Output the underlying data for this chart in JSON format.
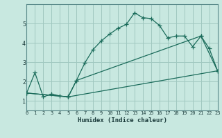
{
  "title": "",
  "xlabel": "Humidex (Indice chaleur)",
  "bg_color": "#c8e8e0",
  "grid_color": "#a0c8c0",
  "line_color": "#1a6b5a",
  "line1_x": [
    0,
    1,
    2,
    3,
    4,
    5,
    6,
    7,
    8,
    9,
    10,
    11,
    12,
    13,
    14,
    15,
    16,
    17,
    18,
    19,
    20,
    21,
    22,
    23
  ],
  "line1_y": [
    1.4,
    2.45,
    1.2,
    1.35,
    1.25,
    1.2,
    2.05,
    2.95,
    3.65,
    4.1,
    4.45,
    4.75,
    4.95,
    5.55,
    5.3,
    5.25,
    4.9,
    4.25,
    4.35,
    4.35,
    3.8,
    4.35,
    3.7,
    2.55
  ],
  "line2_x": [
    0,
    5,
    6,
    21,
    23
  ],
  "line2_y": [
    1.4,
    1.2,
    2.05,
    4.35,
    2.55
  ],
  "line3_x": [
    0,
    5,
    23
  ],
  "line3_y": [
    1.4,
    1.2,
    2.55
  ],
  "ylim": [
    0.5,
    6.0
  ],
  "xlim": [
    0,
    23
  ],
  "yticks": [
    1,
    2,
    3,
    4,
    5
  ],
  "xticks": [
    0,
    1,
    2,
    3,
    4,
    5,
    6,
    7,
    8,
    9,
    10,
    11,
    12,
    13,
    14,
    15,
    16,
    17,
    18,
    19,
    20,
    21,
    22,
    23
  ]
}
